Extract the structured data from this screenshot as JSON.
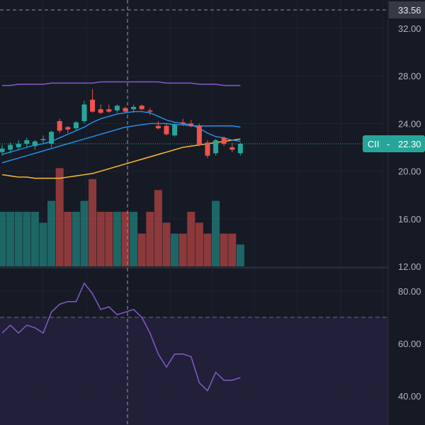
{
  "chart_data": [
    {
      "type": "candlestick",
      "symbol_tag": "CII",
      "last_price_label": "22.30",
      "crosshair_price_label": "33.56",
      "yticks": [
        "32.00",
        "28.00",
        "24.00",
        "20.00",
        "16.00",
        "12.00"
      ],
      "ylim": [
        12,
        33.6
      ],
      "colors": {
        "up": "#26a69a",
        "down": "#ef5350",
        "ma_fast": "#2196f3",
        "ma_mid": "#2196f3",
        "ma_slow": "#f0b429",
        "ma_long": "#7e57c2",
        "price_line": "#26a69a"
      },
      "candles": [
        {
          "o": 21.6,
          "h": 22.2,
          "l": 21.3,
          "c": 21.9
        },
        {
          "o": 21.8,
          "h": 22.4,
          "l": 21.5,
          "c": 22.2
        },
        {
          "o": 22.0,
          "h": 22.6,
          "l": 21.8,
          "c": 22.3
        },
        {
          "o": 22.3,
          "h": 22.8,
          "l": 22.0,
          "c": 22.6
        },
        {
          "o": 22.1,
          "h": 22.6,
          "l": 21.8,
          "c": 22.5
        },
        {
          "o": 22.6,
          "h": 23.0,
          "l": 22.3,
          "c": 22.7
        },
        {
          "o": 22.3,
          "h": 23.4,
          "l": 22.0,
          "c": 23.3
        },
        {
          "o": 24.2,
          "h": 24.4,
          "l": 23.2,
          "c": 23.4
        },
        {
          "o": 23.7,
          "h": 23.8,
          "l": 23.2,
          "c": 23.5
        },
        {
          "o": 23.6,
          "h": 24.2,
          "l": 23.4,
          "c": 24.1
        },
        {
          "o": 24.2,
          "h": 25.9,
          "l": 24.0,
          "c": 25.6
        },
        {
          "o": 26.0,
          "h": 26.9,
          "l": 24.9,
          "c": 25.0
        },
        {
          "o": 25.2,
          "h": 25.6,
          "l": 24.8,
          "c": 24.9
        },
        {
          "o": 25.2,
          "h": 25.6,
          "l": 24.9,
          "c": 25.0
        },
        {
          "o": 25.1,
          "h": 25.6,
          "l": 24.9,
          "c": 25.5
        },
        {
          "o": 25.3,
          "h": 25.4,
          "l": 24.9,
          "c": 25.0
        },
        {
          "o": 25.2,
          "h": 25.6,
          "l": 24.9,
          "c": 25.4
        },
        {
          "o": 25.5,
          "h": 25.6,
          "l": 25.1,
          "c": 25.2
        },
        {
          "o": 25.1,
          "h": 25.3,
          "l": 24.7,
          "c": 25.0
        },
        {
          "o": 23.8,
          "h": 24.2,
          "l": 23.5,
          "c": 23.6
        },
        {
          "o": 23.8,
          "h": 24.0,
          "l": 23.0,
          "c": 23.1
        },
        {
          "o": 23.0,
          "h": 24.0,
          "l": 22.9,
          "c": 23.9
        },
        {
          "o": 24.1,
          "h": 24.4,
          "l": 23.8,
          "c": 24.0
        },
        {
          "o": 24.0,
          "h": 24.3,
          "l": 23.7,
          "c": 23.8
        },
        {
          "o": 23.8,
          "h": 24.0,
          "l": 22.1,
          "c": 22.2
        },
        {
          "o": 22.4,
          "h": 22.6,
          "l": 21.1,
          "c": 21.3
        },
        {
          "o": 21.5,
          "h": 22.7,
          "l": 21.3,
          "c": 22.6
        },
        {
          "o": 22.8,
          "h": 22.9,
          "l": 22.1,
          "c": 22.3
        },
        {
          "o": 22.0,
          "h": 22.4,
          "l": 21.6,
          "c": 21.8
        },
        {
          "o": 21.5,
          "h": 22.4,
          "l": 21.3,
          "c": 22.3
        }
      ],
      "ma_fast": [
        21.4,
        21.6,
        21.8,
        22.0,
        22.2,
        22.3,
        22.5,
        22.8,
        23.1,
        23.4,
        23.7,
        24.1,
        24.4,
        24.6,
        24.8,
        24.9,
        25.0,
        25.0,
        24.9,
        24.6,
        24.3,
        24.1,
        24.0,
        23.9,
        23.6,
        23.2,
        22.9,
        22.8,
        22.6,
        22.5
      ],
      "ma_mid": [
        20.7,
        20.9,
        21.1,
        21.3,
        21.5,
        21.7,
        21.9,
        22.1,
        22.3,
        22.5,
        22.7,
        22.9,
        23.1,
        23.3,
        23.5,
        23.7,
        23.8,
        23.9,
        24.0,
        24.0,
        24.0,
        23.9,
        23.9,
        23.8,
        23.8,
        23.8,
        23.8,
        23.8,
        23.8,
        23.7
      ],
      "ma_slow": [
        19.7,
        19.6,
        19.5,
        19.5,
        19.4,
        19.4,
        19.4,
        19.4,
        19.5,
        19.6,
        19.7,
        19.8,
        20.0,
        20.2,
        20.4,
        20.6,
        20.8,
        21.0,
        21.2,
        21.4,
        21.6,
        21.8,
        22.0,
        22.1,
        22.2,
        22.3,
        22.4,
        22.5,
        22.6,
        22.7
      ],
      "ma_long": [
        27.2,
        27.2,
        27.3,
        27.3,
        27.3,
        27.3,
        27.4,
        27.4,
        27.4,
        27.4,
        27.4,
        27.4,
        27.5,
        27.5,
        27.5,
        27.5,
        27.5,
        27.5,
        27.5,
        27.5,
        27.4,
        27.4,
        27.4,
        27.4,
        27.3,
        27.3,
        27.3,
        27.2,
        27.2,
        27.2
      ],
      "volume": [
        5,
        5,
        5,
        5,
        5,
        4,
        6,
        9,
        5,
        5,
        6,
        8,
        5,
        5,
        5,
        5,
        5,
        3,
        5,
        7,
        4,
        3,
        3,
        5,
        4,
        3,
        6,
        3,
        3,
        2
      ]
    },
    {
      "type": "line",
      "name": "oscillator",
      "yticks": [
        "80.00",
        "60.00",
        "40.00"
      ],
      "ylim": [
        34,
        88
      ],
      "overbought": 70,
      "values": [
        64,
        67,
        64,
        67,
        66,
        64,
        72,
        75,
        76,
        76,
        83,
        79,
        73,
        74,
        71,
        72,
        73,
        70,
        64,
        56,
        51,
        56,
        56,
        55,
        45,
        42,
        49,
        46,
        46,
        47
      ]
    }
  ]
}
